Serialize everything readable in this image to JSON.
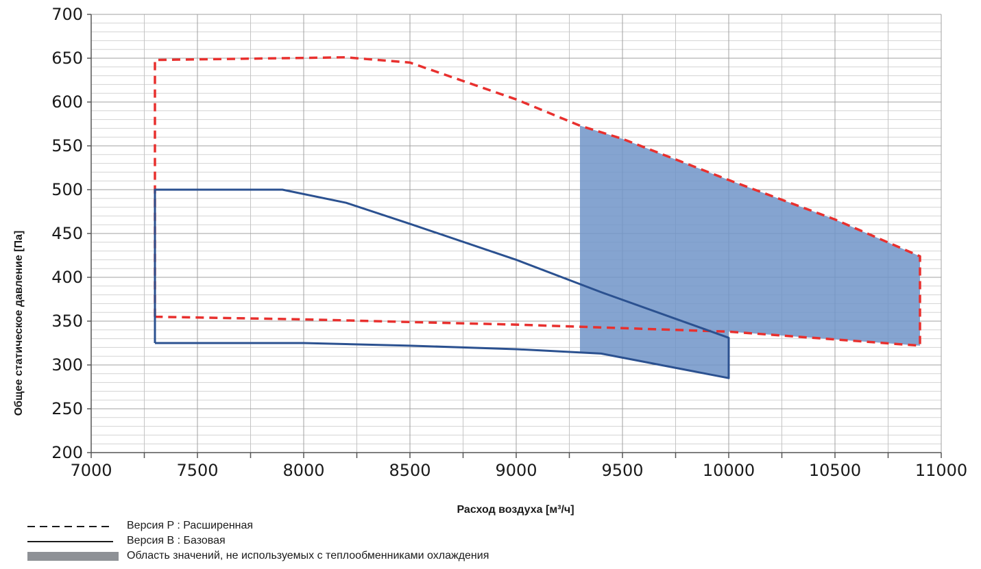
{
  "chart_data": {
    "type": "line",
    "xlabel": "Расход воздуха [м³/ч]",
    "ylabel": "Общее статическое давление [Па]",
    "xlim": [
      7000,
      11000
    ],
    "ylim": [
      200,
      700
    ],
    "x_ticks": [
      "7000",
      "7500",
      "8000",
      "8500",
      "9000",
      "9500",
      "10000",
      "10500",
      "11000"
    ],
    "y_ticks": [
      "200",
      "250",
      "300",
      "350",
      "400",
      "450",
      "500",
      "550",
      "600",
      "650",
      "700"
    ],
    "grid": true,
    "series": [
      {
        "name": "Версия P : Расширенная",
        "style": "dashed",
        "color": "#e8302e",
        "points": [
          [
            7300,
            355
          ],
          [
            7300,
            648
          ],
          [
            8200,
            651
          ],
          [
            8500,
            645
          ],
          [
            9000,
            603
          ],
          [
            9300,
            573
          ],
          [
            9500,
            558
          ],
          [
            10000,
            511
          ],
          [
            10500,
            466
          ],
          [
            10900,
            424
          ],
          [
            10900,
            322
          ],
          [
            10000,
            338
          ],
          [
            9000,
            346
          ],
          [
            8000,
            352
          ],
          [
            7300,
            355
          ]
        ]
      },
      {
        "name": "Версия B : Базовая",
        "style": "solid",
        "color": "#2b5190",
        "points": [
          [
            7300,
            325
          ],
          [
            7300,
            500
          ],
          [
            7900,
            500
          ],
          [
            8200,
            485
          ],
          [
            8500,
            461
          ],
          [
            9000,
            420
          ],
          [
            9400,
            383
          ],
          [
            10000,
            331
          ],
          [
            10000,
            285
          ],
          [
            9400,
            313
          ],
          [
            9000,
            318
          ],
          [
            8500,
            322
          ],
          [
            8000,
            325
          ],
          [
            7300,
            325
          ]
        ]
      }
    ],
    "shaded_region": {
      "name": "Область значений, не используемых с теплообменниками охлаждения",
      "color": "#7094c8",
      "points": [
        [
          9300,
          573
        ],
        [
          9500,
          558
        ],
        [
          10000,
          511
        ],
        [
          10500,
          466
        ],
        [
          10900,
          424
        ],
        [
          10900,
          322
        ],
        [
          10000,
          338
        ],
        [
          10000,
          285
        ],
        [
          9400,
          313
        ],
        [
          9300,
          314
        ]
      ]
    },
    "legend": [
      {
        "label": "Версия P : Расширенная",
        "style": "dashed",
        "color": "#1a1a1a"
      },
      {
        "label": "Версия B : Базовая",
        "style": "solid",
        "color": "#1a1a1a"
      },
      {
        "label": "Область значений, не используемых с теплообменниками охлаждения",
        "style": "fill",
        "color": "#8e9196"
      }
    ]
  }
}
